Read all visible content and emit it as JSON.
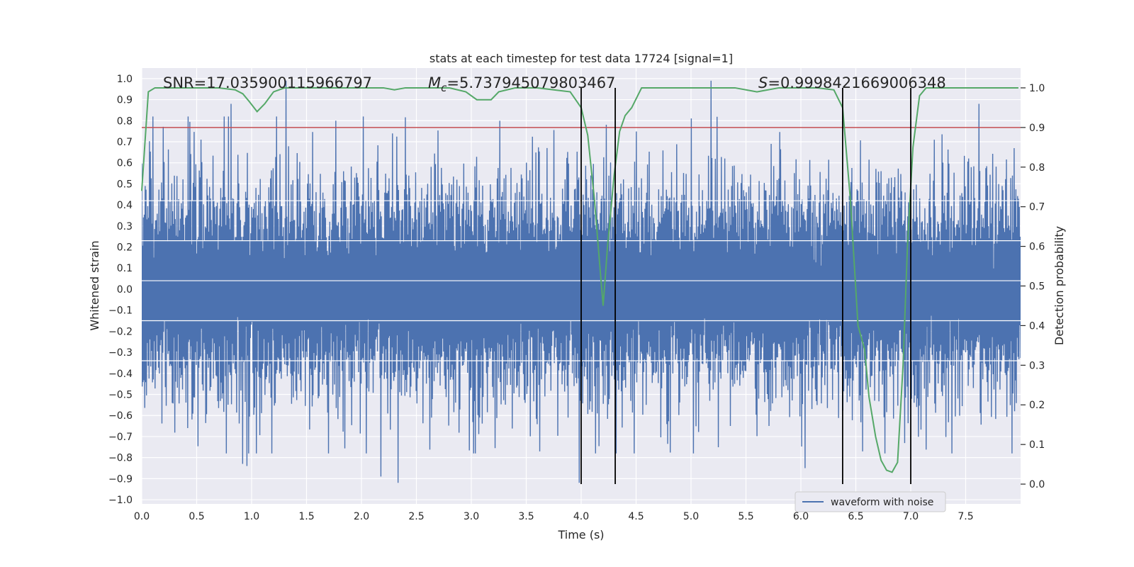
{
  "chart_data": {
    "type": "line",
    "title": "stats at each timestep for test data 17724 [signal=1]",
    "xlabel": "Time (s)",
    "ylabel": "Whitened strain",
    "y2label": "Detection probability",
    "xlim": [
      0.0,
      8.0
    ],
    "ylim": [
      -1.02,
      1.05
    ],
    "y2lim": [
      -0.05,
      1.05
    ],
    "xticks": [
      0.0,
      0.5,
      1.0,
      1.5,
      2.0,
      2.5,
      3.0,
      3.5,
      4.0,
      4.5,
      5.0,
      5.5,
      6.0,
      6.5,
      7.0,
      7.5
    ],
    "xtick_labels": [
      "0.0",
      "0.5",
      "1.0",
      "1.5",
      "2.0",
      "2.5",
      "3.0",
      "3.5",
      "4.0",
      "4.5",
      "5.0",
      "5.5",
      "6.0",
      "6.5",
      "7.0",
      "7.5"
    ],
    "yticks": [
      -1.0,
      -0.9,
      -0.8,
      -0.7,
      -0.6,
      -0.5,
      -0.4,
      -0.3,
      -0.2,
      -0.1,
      0.0,
      0.1,
      0.2,
      0.3,
      0.4,
      0.5,
      0.6,
      0.7,
      0.8,
      0.9,
      1.0
    ],
    "ytick_labels": [
      "−1.0",
      "−0.9",
      "−0.8",
      "−0.7",
      "−0.6",
      "−0.5",
      "−0.4",
      "−0.3",
      "−0.2",
      "−0.1",
      "0.0",
      "0.1",
      "0.2",
      "0.3",
      "0.4",
      "0.5",
      "0.6",
      "0.7",
      "0.8",
      "0.9",
      "1.0"
    ],
    "y2ticks": [
      0.0,
      0.1,
      0.2,
      0.3,
      0.4,
      0.5,
      0.6,
      0.7,
      0.8,
      0.9,
      1.0
    ],
    "y2tick_labels": [
      "0.0",
      "0.1",
      "0.2",
      "0.3",
      "0.4",
      "0.5",
      "0.6",
      "0.7",
      "0.8",
      "0.9",
      "1.0"
    ],
    "grid": true,
    "legend_placement": "lower-right",
    "annotations": {
      "snr": "SNR=17.035900115966797",
      "mc_prefix": "=5.737945079803467",
      "mc_symbol": "M",
      "mc_sub": "c",
      "s_symbol": "S",
      "s_value": "=0.9998421669006348"
    },
    "threshold_y2": 0.9,
    "vertical_lines_x": [
      4.0,
      4.31,
      6.38,
      7.0
    ],
    "colors": {
      "waveform": "#4c72b0",
      "probability": "#55a868",
      "threshold": "#c44e52",
      "markers": "#000000",
      "plot_bg": "#eaeaf2",
      "grid": "#ffffff"
    },
    "series": [
      {
        "name": "waveform with noise",
        "role": "strain",
        "sample_count": 2048,
        "envelope_level": 0.38,
        "notable_peaks": [
          {
            "x": 0.81,
            "y": 0.88
          },
          {
            "x": 1.31,
            "y": 0.99
          },
          {
            "x": 1.77,
            "y": 0.8
          },
          {
            "x": 5.18,
            "y": 0.99
          },
          {
            "x": 7.62,
            "y": 0.88
          },
          {
            "x": 0.92,
            "y": -0.83
          },
          {
            "x": 0.96,
            "y": -0.84
          },
          {
            "x": 2.18,
            "y": -0.89
          },
          {
            "x": 2.33,
            "y": -0.92
          },
          {
            "x": 3.98,
            "y": -0.92
          },
          {
            "x": 6.04,
            "y": -0.85
          },
          {
            "x": 7.92,
            "y": -0.78
          }
        ]
      },
      {
        "role": "probability",
        "x": [
          0.0,
          0.06,
          0.12,
          0.3,
          0.5,
          0.7,
          0.85,
          0.92,
          0.98,
          1.05,
          1.12,
          1.2,
          1.3,
          1.5,
          1.8,
          2.0,
          2.2,
          2.3,
          2.4,
          2.6,
          2.8,
          2.95,
          3.05,
          3.12,
          3.18,
          3.25,
          3.4,
          3.6,
          3.75,
          3.9,
          4.0,
          4.06,
          4.12,
          4.17,
          4.2,
          4.24,
          4.3,
          4.35,
          4.4,
          4.46,
          4.55,
          4.8,
          5.0,
          5.2,
          5.4,
          5.6,
          5.8,
          6.0,
          6.15,
          6.3,
          6.38,
          6.45,
          6.52,
          6.58,
          6.62,
          6.68,
          6.73,
          6.78,
          6.83,
          6.88,
          6.93,
          6.97,
          7.02,
          7.08,
          7.14,
          7.3,
          7.6,
          7.8,
          7.98
        ],
        "values": [
          0.74,
          0.99,
          1.0,
          1.0,
          1.0,
          1.0,
          0.995,
          0.985,
          0.965,
          0.94,
          0.96,
          0.99,
          1.0,
          1.0,
          1.0,
          1.0,
          1.0,
          0.995,
          1.0,
          1.0,
          1.0,
          0.99,
          0.97,
          0.97,
          0.97,
          0.99,
          1.0,
          1.0,
          0.995,
          0.99,
          0.95,
          0.88,
          0.72,
          0.55,
          0.45,
          0.6,
          0.78,
          0.89,
          0.93,
          0.95,
          1.0,
          1.0,
          1.0,
          1.0,
          1.0,
          0.99,
          1.0,
          1.0,
          1.0,
          0.995,
          0.95,
          0.72,
          0.4,
          0.34,
          0.22,
          0.12,
          0.06,
          0.035,
          0.03,
          0.055,
          0.3,
          0.6,
          0.85,
          0.98,
          1.0,
          1.0,
          1.0,
          1.0,
          1.0
        ]
      }
    ]
  },
  "legend": {
    "entries": [
      {
        "label": "waveform with noise",
        "color": "#4c72b0"
      }
    ]
  }
}
